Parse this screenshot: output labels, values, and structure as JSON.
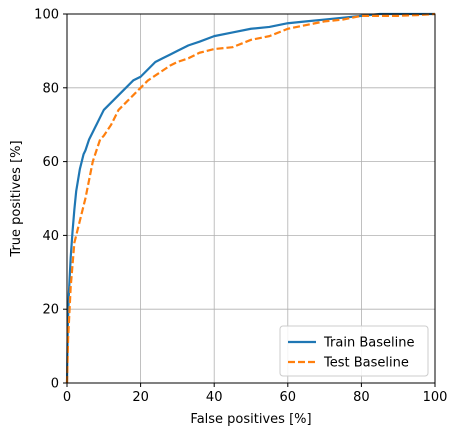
{
  "chart_data": {
    "type": "line",
    "title": "",
    "xlabel": "False positives [%]",
    "ylabel": "True positives [%]",
    "xlim": [
      0,
      100
    ],
    "ylim": [
      0,
      100
    ],
    "xticks": [
      0,
      20,
      40,
      60,
      80,
      100
    ],
    "yticks": [
      0,
      20,
      40,
      60,
      80,
      100
    ],
    "grid": true,
    "legend_position": "bottom-right",
    "series": [
      {
        "name": "Train Baseline",
        "color": "#1f77b4",
        "style": "solid",
        "x": [
          0,
          0.2,
          0.5,
          0.8,
          1,
          1.5,
          2,
          2.5,
          3,
          3.5,
          4,
          4.5,
          5,
          6,
          7,
          8,
          9,
          10,
          12,
          14,
          16,
          18,
          20,
          22,
          24,
          26,
          28,
          30,
          33,
          36,
          40,
          45,
          50,
          55,
          60,
          65,
          70,
          75,
          80,
          85,
          90,
          95,
          100
        ],
        "y": [
          0,
          15,
          24,
          30,
          34,
          41,
          47,
          52,
          55,
          58,
          60,
          62,
          63,
          66,
          68,
          70,
          72,
          74,
          76,
          78,
          80,
          82,
          83,
          85,
          87,
          88,
          89,
          90,
          91.5,
          92.5,
          94,
          95,
          96,
          96.5,
          97.5,
          98,
          98.5,
          99,
          99.5,
          100,
          100,
          100,
          100
        ]
      },
      {
        "name": "Test Baseline",
        "color": "#ff7f0e",
        "style": "dashed",
        "x": [
          0,
          0.3,
          0.7,
          1,
          1.5,
          2,
          2.5,
          3,
          4,
          5,
          6,
          7,
          8,
          9,
          10,
          12,
          14,
          16,
          18,
          20,
          22,
          25,
          28,
          30,
          33,
          36,
          40,
          45,
          50,
          55,
          60,
          65,
          70,
          75,
          80,
          85,
          90,
          95,
          100
        ],
        "y": [
          0,
          12,
          20,
          26,
          32,
          38,
          40,
          42,
          46,
          50,
          55,
          60,
          63,
          66,
          67,
          70,
          74,
          76,
          78,
          80,
          82,
          84,
          86,
          87,
          88,
          89.5,
          90.5,
          91,
          93,
          94,
          96,
          97,
          98,
          98.5,
          99.5,
          99.5,
          99.5,
          99.7,
          100
        ]
      }
    ]
  }
}
